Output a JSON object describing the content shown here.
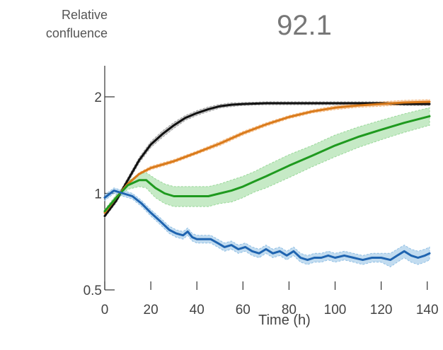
{
  "chart_data": {
    "type": "line",
    "title": "92.1",
    "xlabel": "Time (h)",
    "ylabel": "Relative confluence",
    "y_scale": "log",
    "xlim": [
      0,
      145
    ],
    "ylim": [
      0.5,
      2.5
    ],
    "x_ticks": [
      "0",
      "20",
      "40",
      "60",
      "80",
      "100",
      "120",
      "140"
    ],
    "y_ticks": [
      "0.5",
      "1",
      "2"
    ],
    "legend": "none",
    "grid": false,
    "series": [
      {
        "color": "#111111",
        "band_color": "#9e9e9e",
        "x": [
          0,
          5,
          10,
          15,
          20,
          25,
          30,
          35,
          40,
          45,
          50,
          55,
          60,
          70,
          80,
          90,
          100,
          110,
          120,
          130,
          141
        ],
        "y": [
          0.85,
          0.95,
          1.1,
          1.27,
          1.42,
          1.53,
          1.63,
          1.72,
          1.78,
          1.83,
          1.87,
          1.89,
          1.9,
          1.91,
          1.91,
          1.91,
          1.91,
          1.91,
          1.91,
          1.9,
          1.9
        ],
        "err": [
          0.01,
          0.015,
          0.02,
          0.025,
          0.03,
          0.035,
          0.035,
          0.03,
          0.03,
          0.03,
          0.025,
          0.025,
          0.02,
          0.02,
          0.02,
          0.02,
          0.02,
          0.02,
          0.02,
          0.02,
          0.02
        ]
      },
      {
        "color": "#d97a1a",
        "band_color": "#f5b77c",
        "x": [
          0,
          5,
          10,
          15,
          20,
          30,
          40,
          50,
          60,
          70,
          80,
          90,
          100,
          110,
          120,
          130,
          141
        ],
        "y": [
          0.87,
          0.97,
          1.07,
          1.15,
          1.2,
          1.26,
          1.34,
          1.43,
          1.54,
          1.64,
          1.73,
          1.8,
          1.85,
          1.88,
          1.9,
          1.92,
          1.93
        ],
        "err": [
          0.01,
          0.01,
          0.01,
          0.01,
          0.015,
          0.015,
          0.015,
          0.02,
          0.02,
          0.02,
          0.02,
          0.02,
          0.025,
          0.025,
          0.03,
          0.03,
          0.03
        ]
      },
      {
        "color": "#1f9a1f",
        "band_color": "#98d898",
        "x": [
          0,
          5,
          10,
          15,
          18,
          22,
          26,
          30,
          35,
          40,
          45,
          50,
          55,
          60,
          65,
          70,
          80,
          90,
          100,
          110,
          120,
          130,
          141
        ],
        "y": [
          0.88,
          0.97,
          1.06,
          1.1,
          1.1,
          1.04,
          1.0,
          0.98,
          0.98,
          0.98,
          0.98,
          1.0,
          1.02,
          1.05,
          1.09,
          1.13,
          1.22,
          1.31,
          1.41,
          1.5,
          1.58,
          1.66,
          1.74
        ],
        "err": [
          0.01,
          0.02,
          0.03,
          0.05,
          0.06,
          0.07,
          0.07,
          0.07,
          0.07,
          0.07,
          0.07,
          0.07,
          0.08,
          0.08,
          0.08,
          0.09,
          0.1,
          0.1,
          0.11,
          0.11,
          0.11,
          0.11,
          0.11
        ]
      },
      {
        "color": "#1f64b0",
        "band_color": "#90bfe4",
        "x": [
          0,
          4,
          8,
          12,
          16,
          20,
          24,
          28,
          31,
          34,
          36,
          38,
          40,
          43,
          46,
          49,
          52,
          55,
          58,
          61,
          64,
          67,
          70,
          73,
          76,
          79,
          82,
          85,
          88,
          91,
          94,
          97,
          100,
          104,
          108,
          112,
          116,
          120,
          124,
          127,
          130,
          133,
          136,
          139,
          141
        ],
        "y": [
          0.97,
          1.02,
          1.0,
          0.98,
          0.93,
          0.87,
          0.82,
          0.77,
          0.75,
          0.74,
          0.76,
          0.73,
          0.72,
          0.72,
          0.72,
          0.7,
          0.68,
          0.69,
          0.67,
          0.68,
          0.66,
          0.65,
          0.67,
          0.65,
          0.66,
          0.64,
          0.66,
          0.63,
          0.62,
          0.63,
          0.63,
          0.64,
          0.63,
          0.64,
          0.63,
          0.62,
          0.63,
          0.63,
          0.62,
          0.64,
          0.66,
          0.64,
          0.63,
          0.64,
          0.65
        ],
        "err": [
          0.02,
          0.02,
          0.02,
          0.02,
          0.02,
          0.02,
          0.02,
          0.02,
          0.02,
          0.02,
          0.02,
          0.02,
          0.02,
          0.02,
          0.02,
          0.02,
          0.02,
          0.02,
          0.02,
          0.02,
          0.02,
          0.02,
          0.02,
          0.02,
          0.02,
          0.02,
          0.02,
          0.02,
          0.02,
          0.02,
          0.02,
          0.02,
          0.02,
          0.02,
          0.02,
          0.02,
          0.02,
          0.02,
          0.03,
          0.03,
          0.03,
          0.03,
          0.03,
          0.03,
          0.03
        ]
      }
    ]
  }
}
